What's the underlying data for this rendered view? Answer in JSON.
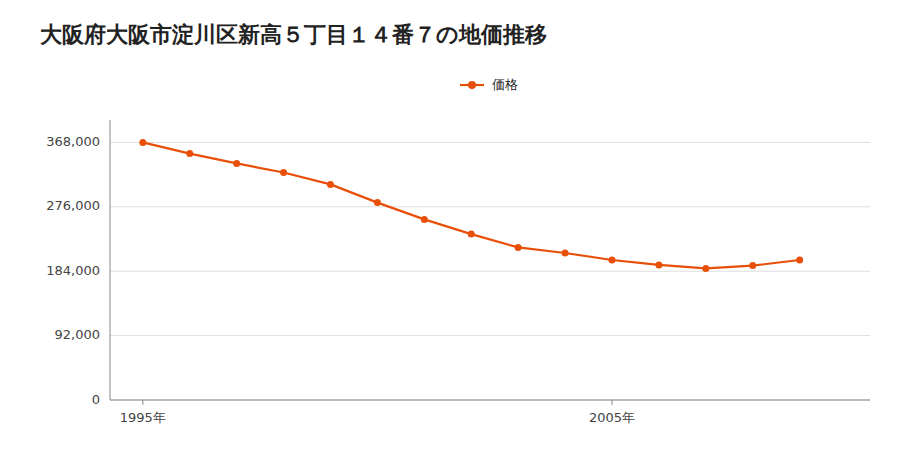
{
  "chart_data": {
    "type": "line",
    "title": "大阪府大阪市淀川区新高５丁目１４番７の地価推移",
    "x": [
      1995,
      1996,
      1997,
      1998,
      1999,
      2000,
      2001,
      2002,
      2003,
      2004,
      2005,
      2006,
      2007,
      2008,
      2009
    ],
    "series": [
      {
        "name": "価格",
        "color": "#e8500a",
        "marker": "circle",
        "values": [
          368000,
          352000,
          338000,
          325000,
          308000,
          282000,
          258000,
          237000,
          218000,
          210000,
          200000,
          193000,
          188000,
          192000,
          200000
        ]
      }
    ],
    "xlim": [
      1994.3,
      2010.5
    ],
    "xticks": [
      {
        "value": 1995,
        "label": "1995年"
      },
      {
        "value": 2005,
        "label": "2005年"
      }
    ],
    "ylim": [
      0,
      400000
    ],
    "yticks": [
      0,
      {
        "value": 92000,
        "label": "92,000"
      },
      {
        "value": 184000,
        "label": "184,000"
      },
      {
        "value": 276000,
        "label": "276,000"
      },
      {
        "value": 368000,
        "label": "368,000"
      }
    ],
    "grid": true,
    "legend": "top"
  }
}
